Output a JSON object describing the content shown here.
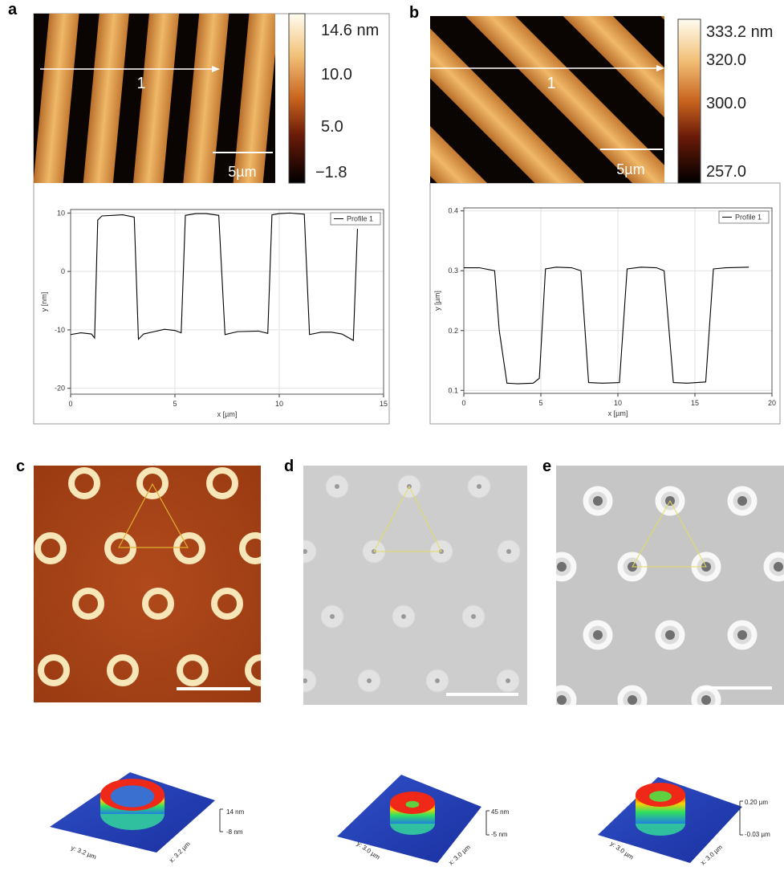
{
  "panel_labels": [
    "a",
    "b",
    "c",
    "d",
    "e"
  ],
  "afm_maps": [
    {
      "colorbar_labels": [
        "14.6 nm",
        "10.0",
        "5.0",
        "−1.8"
      ],
      "scale_bar": "5µm",
      "profile_label": "1"
    },
    {
      "colorbar_labels": [
        "333.2 nm",
        "320.0",
        "300.0",
        "257.0"
      ],
      "scale_bar": "5µm",
      "profile_label": "1"
    }
  ],
  "chart_data": [
    {
      "type": "line",
      "xlabel": "x [µm]",
      "ylabel": "y [nm]",
      "x": [
        0,
        0.5,
        1.0,
        1.15,
        1.3,
        1.5,
        2.0,
        2.5,
        3.05,
        3.25,
        3.5,
        4.0,
        4.5,
        5.0,
        5.3,
        5.5,
        6.0,
        6.5,
        7.1,
        7.4,
        8.0,
        9.0,
        9.45,
        9.65,
        10.0,
        10.5,
        11.2,
        11.45,
        12.0,
        12.5,
        13.0,
        13.55,
        13.75
      ],
      "series": [
        {
          "name": "Profile 1",
          "color": "#000000",
          "values": [
            -10.8,
            -10.5,
            -10.7,
            -11.4,
            8.8,
            9.5,
            9.6,
            9.7,
            9.3,
            -11.6,
            -10.7,
            -10.3,
            -9.9,
            -10.1,
            -10.5,
            9.6,
            9.9,
            9.9,
            9.6,
            -10.8,
            -10.3,
            -10.2,
            -10.6,
            9.7,
            9.9,
            10.0,
            9.8,
            -10.8,
            -10.4,
            -10.4,
            -10.7,
            -11.8,
            7.3
          ]
        }
      ],
      "xlim": [
        0,
        15
      ],
      "xticks": [
        0,
        5,
        10,
        15
      ],
      "ylim": [
        -21,
        10.6
      ],
      "yticks": [
        -20,
        -10,
        0,
        10
      ],
      "grid": true,
      "legend": "upper right"
    },
    {
      "type": "line",
      "xlabel": "x [µm]",
      "ylabel": "y [µm]",
      "x": [
        0,
        1.0,
        2.0,
        2.3,
        2.8,
        3.5,
        4.5,
        4.9,
        5.3,
        6.0,
        7.0,
        7.6,
        8.1,
        9.0,
        10.1,
        10.6,
        11.5,
        12.5,
        13.0,
        13.6,
        14.5,
        15.7,
        16.2,
        17.0,
        18.5
      ],
      "series": [
        {
          "name": "Profile 1",
          "color": "#000000",
          "values": [
            0.305,
            0.305,
            0.3,
            0.2,
            0.112,
            0.111,
            0.112,
            0.12,
            0.303,
            0.306,
            0.305,
            0.3,
            0.113,
            0.112,
            0.113,
            0.303,
            0.306,
            0.305,
            0.3,
            0.113,
            0.112,
            0.114,
            0.303,
            0.305,
            0.306
          ]
        }
      ],
      "xlim": [
        0,
        20
      ],
      "xticks": [
        0,
        5,
        10,
        15,
        20
      ],
      "ylim": [
        0.095,
        0.405
      ],
      "yticks": [
        0.1,
        0.2,
        0.3,
        0.4
      ],
      "grid": true,
      "legend": "upper right"
    }
  ],
  "topographies": [
    {
      "z_labels": [
        "14 nm",
        "-8 nm"
      ],
      "y_label": "y: 3.2 µm",
      "x_label": "x: 3.2 µm"
    },
    {
      "z_labels": [
        "45 nm",
        "-5 nm"
      ],
      "y_label": "y: 3.0 µm",
      "x_label": "x: 3.0 µm"
    },
    {
      "z_labels": [
        "0.20 µm",
        "-0.03 µm"
      ],
      "y_label": "y: 3.0 µm",
      "x_label": "x: 3.0 µm"
    }
  ]
}
